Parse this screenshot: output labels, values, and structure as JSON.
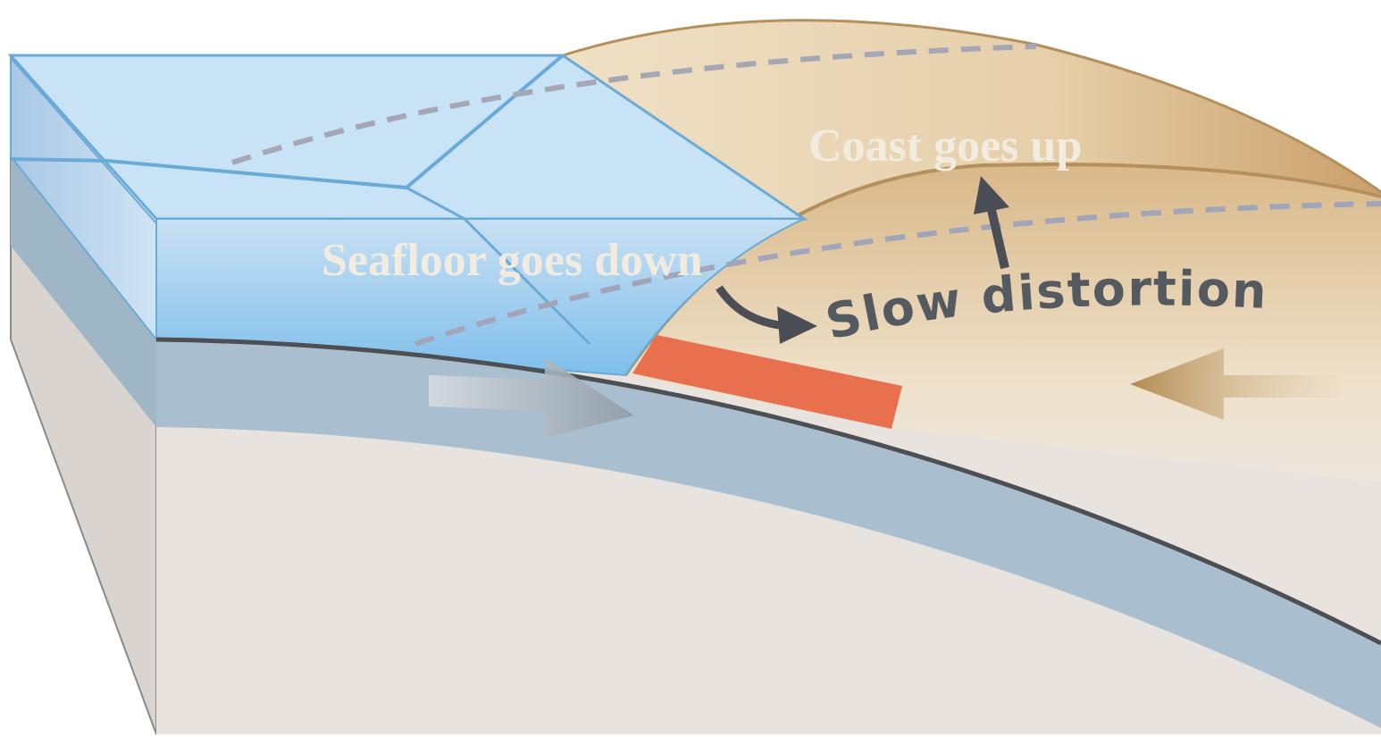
{
  "labels": {
    "coast": "Coast goes up",
    "seafloor": "Seafloor goes down",
    "distortion": "Slow distortion"
  }
}
